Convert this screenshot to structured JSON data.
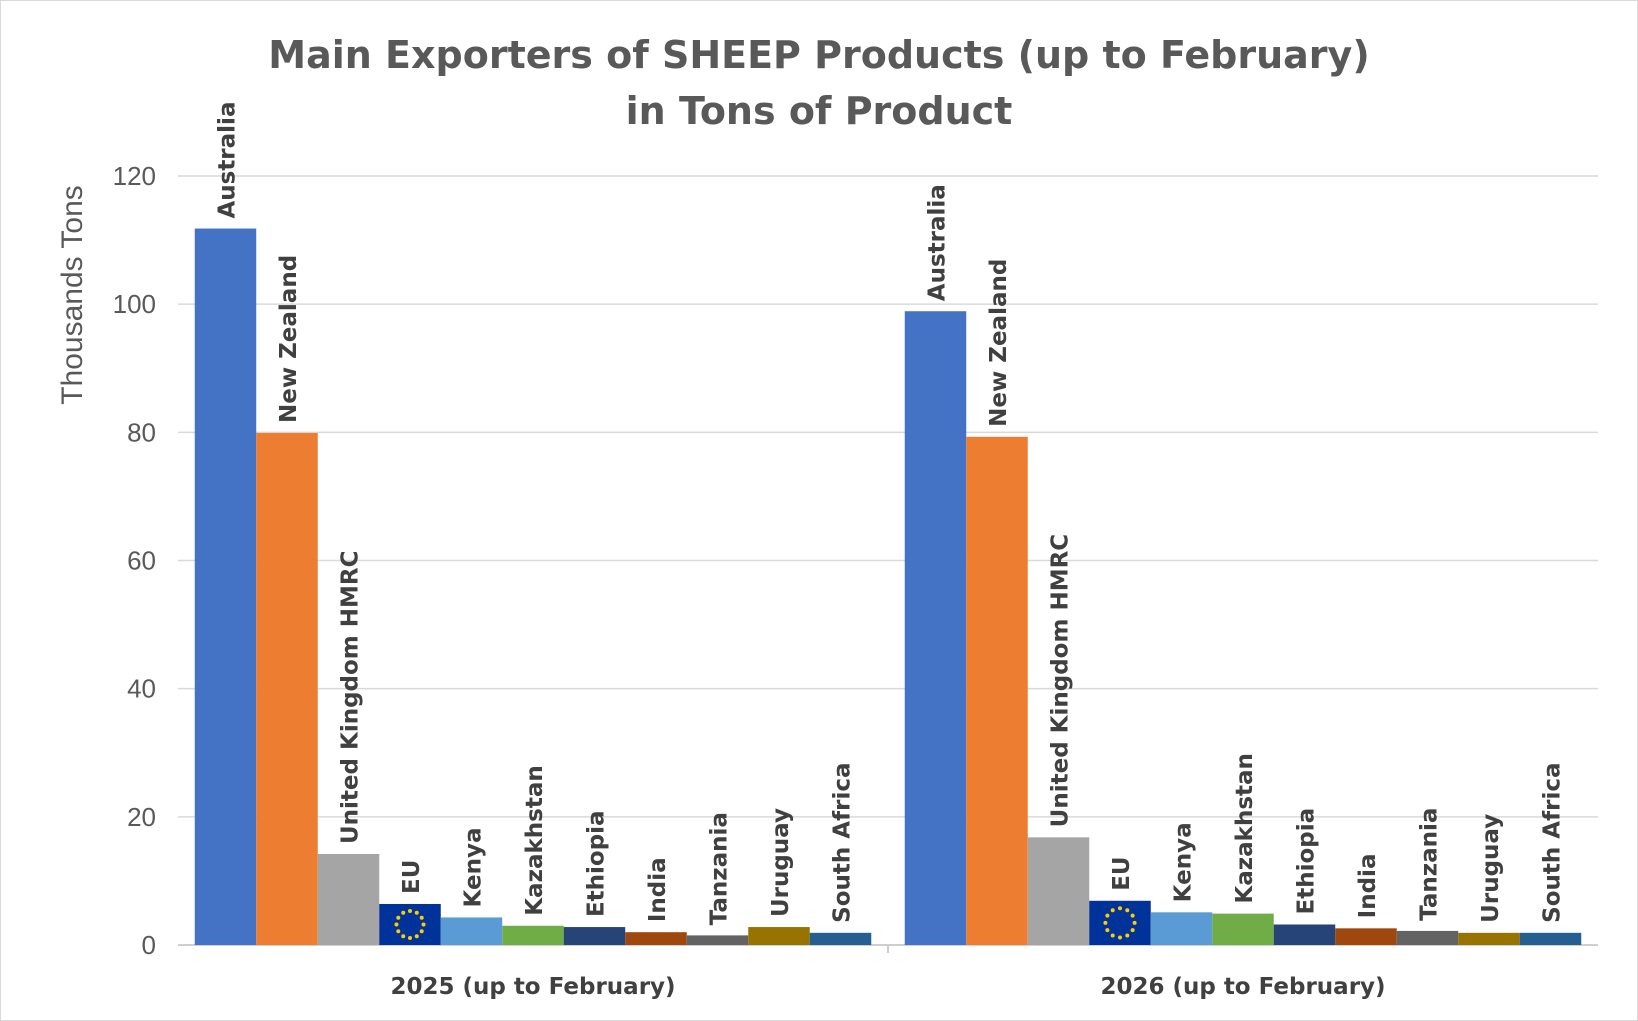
{
  "chart_data": {
    "type": "bar",
    "title_line1": "Main Exporters of SHEEP Products (up to February)",
    "title_line2": "in Tons of Product",
    "ylabel": "Thousands Tons",
    "xlabel": "",
    "ylim": [
      0,
      120
    ],
    "yticks": [
      "0",
      "20",
      "40",
      "60",
      "80",
      "100",
      "120"
    ],
    "grid": true,
    "legend": "none",
    "categories": [
      "2025 (up to February)",
      "2026 (up to February)"
    ],
    "series": [
      {
        "name": "Australia",
        "color": "#4472C4",
        "values": [
          111.8,
          98.9
        ]
      },
      {
        "name": "New Zealand",
        "color": "#ED7D31",
        "values": [
          79.9,
          79.3
        ]
      },
      {
        "name": "United Kingdom HMRC",
        "color": "#A5A5A5",
        "values": [
          14.2,
          16.8
        ]
      },
      {
        "name": "EU",
        "color": "#003399",
        "icon": "eu-flag-icon",
        "values": [
          6.4,
          6.9
        ]
      },
      {
        "name": "Kenya",
        "color": "#5B9BD5",
        "values": [
          4.3,
          5.1
        ]
      },
      {
        "name": "Kazakhstan",
        "color": "#70AD47",
        "values": [
          3.0,
          4.9
        ]
      },
      {
        "name": "Ethiopia",
        "color": "#264478",
        "values": [
          2.8,
          3.2
        ]
      },
      {
        "name": "India",
        "color": "#9E480E",
        "values": [
          2.0,
          2.6
        ]
      },
      {
        "name": "Tanzania",
        "color": "#636363",
        "values": [
          1.5,
          2.2
        ]
      },
      {
        "name": "Uruguay",
        "color": "#997300",
        "values": [
          2.8,
          1.9
        ]
      },
      {
        "name": "South Africa",
        "color": "#255E91",
        "values": [
          1.9,
          1.9
        ]
      }
    ]
  }
}
